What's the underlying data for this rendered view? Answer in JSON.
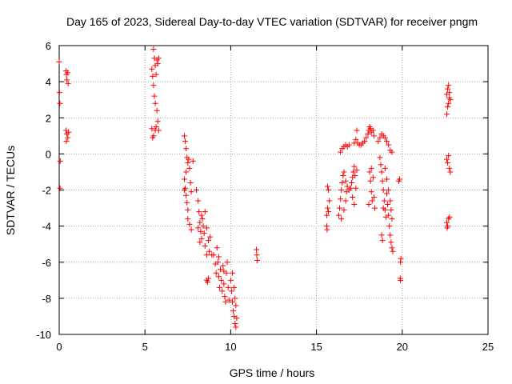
{
  "chart_data": {
    "type": "scatter",
    "title": "Day 165 of 2023, Sidereal Day-to-day VTEC variation (SDTVAR) for receiver pngm",
    "xlabel": "GPS time / hours",
    "ylabel": "SDTVAR / TECUs",
    "xlim": [
      0,
      25
    ],
    "ylim": [
      -10,
      6
    ],
    "xticks": [
      0,
      5,
      10,
      15,
      20,
      25
    ],
    "yticks": [
      -10,
      -8,
      -6,
      -4,
      -2,
      0,
      2,
      4,
      6
    ],
    "grid": true,
    "marker": "plus",
    "color": "#ff0000",
    "series": [
      {
        "name": "SDTVAR",
        "points": [
          [
            0.0,
            5.1
          ],
          [
            0.02,
            3.4
          ],
          [
            0.04,
            2.8
          ],
          [
            0.06,
            -0.4
          ],
          [
            0.05,
            -1.9
          ],
          [
            0.4,
            4.6
          ],
          [
            0.42,
            4.4
          ],
          [
            0.45,
            4.1
          ],
          [
            0.5,
            4.5
          ],
          [
            0.52,
            3.9
          ],
          [
            0.4,
            1.3
          ],
          [
            0.45,
            1.1
          ],
          [
            0.5,
            0.9
          ],
          [
            0.42,
            0.7
          ],
          [
            0.55,
            1.2
          ],
          [
            5.4,
            4.7
          ],
          [
            5.45,
            4.3
          ],
          [
            5.5,
            3.8
          ],
          [
            5.55,
            3.2
          ],
          [
            5.6,
            2.8
          ],
          [
            5.5,
            5.8
          ],
          [
            5.55,
            5.3
          ],
          [
            5.6,
            4.9
          ],
          [
            5.65,
            4.4
          ],
          [
            5.7,
            5.2
          ],
          [
            5.75,
            1.8
          ],
          [
            5.7,
            2.4
          ],
          [
            5.65,
            1.5
          ],
          [
            5.6,
            1.3
          ],
          [
            5.5,
            1.0
          ],
          [
            5.4,
            1.4
          ],
          [
            5.45,
            0.9
          ],
          [
            5.8,
            1.3
          ],
          [
            5.75,
            5.0
          ],
          [
            5.8,
            5.3
          ],
          [
            7.3,
            1.0
          ],
          [
            7.35,
            0.7
          ],
          [
            7.4,
            0.3
          ],
          [
            7.45,
            -0.2
          ],
          [
            7.5,
            -0.5
          ],
          [
            7.3,
            -1.4
          ],
          [
            7.35,
            -1.9
          ],
          [
            7.4,
            -2.3
          ],
          [
            7.45,
            -2.7
          ],
          [
            7.5,
            -3.1
          ],
          [
            7.55,
            -0.3
          ],
          [
            7.6,
            -0.8
          ],
          [
            7.65,
            -1.6
          ],
          [
            7.7,
            -2.1
          ],
          [
            7.8,
            -0.4
          ],
          [
            7.5,
            -3.6
          ],
          [
            7.6,
            -3.9
          ],
          [
            7.7,
            -4.2
          ],
          [
            7.4,
            -1.0
          ],
          [
            7.3,
            -2.0
          ],
          [
            8.0,
            -2.0
          ],
          [
            8.1,
            -2.6
          ],
          [
            8.15,
            -3.2
          ],
          [
            8.2,
            -3.8
          ],
          [
            8.25,
            -4.3
          ],
          [
            8.3,
            -4.7
          ],
          [
            8.35,
            -3.6
          ],
          [
            8.4,
            -4.0
          ],
          [
            8.45,
            -4.4
          ],
          [
            8.5,
            -3.2
          ],
          [
            8.6,
            -4.1
          ],
          [
            8.7,
            -4.8
          ],
          [
            8.75,
            -5.4
          ],
          [
            8.8,
            -4.6
          ],
          [
            8.9,
            -5.6
          ],
          [
            8.5,
            -5.1
          ],
          [
            8.6,
            -5.6
          ],
          [
            8.2,
            -4.9
          ],
          [
            8.3,
            -3.4
          ],
          [
            8.1,
            -4.1
          ],
          [
            8.6,
            -7.0
          ],
          [
            8.65,
            -7.1
          ],
          [
            8.7,
            -6.9
          ],
          [
            9.0,
            -5.6
          ],
          [
            9.1,
            -6.1
          ],
          [
            9.15,
            -6.6
          ],
          [
            9.2,
            -5.2
          ],
          [
            9.25,
            -6.0
          ],
          [
            9.3,
            -6.8
          ],
          [
            9.35,
            -7.4
          ],
          [
            9.4,
            -6.4
          ],
          [
            9.45,
            -7.0
          ],
          [
            9.5,
            -7.6
          ],
          [
            9.55,
            -6.2
          ],
          [
            9.6,
            -7.2
          ],
          [
            9.65,
            -7.9
          ],
          [
            9.7,
            -8.2
          ],
          [
            9.75,
            -6.6
          ],
          [
            9.8,
            -6.0
          ],
          [
            9.85,
            -7.4
          ],
          [
            9.9,
            -8.1
          ],
          [
            9.3,
            -5.7
          ],
          [
            9.6,
            -6.5
          ],
          [
            10.0,
            -7.0
          ],
          [
            10.05,
            -7.6
          ],
          [
            10.1,
            -8.2
          ],
          [
            10.15,
            -8.7
          ],
          [
            10.2,
            -9.0
          ],
          [
            10.25,
            -9.4
          ],
          [
            10.3,
            -8.4
          ],
          [
            10.35,
            -9.1
          ],
          [
            10.2,
            -7.4
          ],
          [
            10.1,
            -6.6
          ],
          [
            10.3,
            -9.6
          ],
          [
            10.25,
            -8.0
          ],
          [
            11.5,
            -5.3
          ],
          [
            11.52,
            -5.6
          ],
          [
            11.55,
            -5.9
          ],
          [
            15.6,
            -4.0
          ],
          [
            15.62,
            -4.2
          ],
          [
            15.65,
            -3.0
          ],
          [
            15.7,
            -3.2
          ],
          [
            15.75,
            -2.6
          ],
          [
            15.7,
            -2.0
          ],
          [
            15.65,
            -1.8
          ],
          [
            15.6,
            -3.4
          ],
          [
            16.3,
            -3.4
          ],
          [
            16.35,
            -3.0
          ],
          [
            16.4,
            -2.5
          ],
          [
            16.45,
            -2.0
          ],
          [
            16.5,
            -1.6
          ],
          [
            16.55,
            -1.2
          ],
          [
            16.6,
            -1.0
          ],
          [
            16.7,
            -1.5
          ],
          [
            16.75,
            -2.1
          ],
          [
            16.8,
            -1.8
          ],
          [
            16.4,
            0.1
          ],
          [
            16.5,
            0.3
          ],
          [
            16.6,
            0.4
          ],
          [
            16.7,
            0.5
          ],
          [
            16.8,
            0.4
          ],
          [
            16.9,
            0.5
          ],
          [
            16.45,
            -3.6
          ],
          [
            16.6,
            -3.1
          ],
          [
            16.7,
            -2.6
          ],
          [
            16.9,
            -2.0
          ],
          [
            17.0,
            -1.9
          ],
          [
            17.05,
            -1.6
          ],
          [
            17.1,
            -1.3
          ],
          [
            17.15,
            -1.0
          ],
          [
            17.2,
            -0.7
          ],
          [
            17.1,
            -2.4
          ],
          [
            17.2,
            -2.8
          ],
          [
            17.3,
            -1.9
          ],
          [
            17.25,
            -1.2
          ],
          [
            17.35,
            -0.9
          ],
          [
            17.2,
            0.6
          ],
          [
            17.3,
            0.8
          ],
          [
            17.4,
            0.6
          ],
          [
            17.5,
            0.5
          ],
          [
            17.35,
            1.3
          ],
          [
            17.6,
            0.5
          ],
          [
            17.7,
            0.6
          ],
          [
            17.8,
            0.7
          ],
          [
            17.9,
            0.9
          ],
          [
            18.0,
            1.1
          ],
          [
            18.05,
            1.3
          ],
          [
            18.1,
            1.5
          ],
          [
            18.15,
            1.4
          ],
          [
            18.2,
            1.2
          ],
          [
            18.3,
            1.3
          ],
          [
            18.35,
            1.0
          ],
          [
            18.1,
            -1.0
          ],
          [
            18.15,
            -1.5
          ],
          [
            18.2,
            -2.1
          ],
          [
            18.25,
            -2.6
          ],
          [
            18.3,
            -1.3
          ],
          [
            18.35,
            -2.4
          ],
          [
            18.4,
            -3.0
          ],
          [
            18.05,
            -2.8
          ],
          [
            18.2,
            -0.8
          ],
          [
            18.6,
            0.7
          ],
          [
            18.7,
            0.9
          ],
          [
            18.8,
            1.1
          ],
          [
            18.9,
            1.0
          ],
          [
            19.0,
            0.9
          ],
          [
            19.1,
            0.7
          ],
          [
            19.2,
            0.5
          ],
          [
            19.3,
            0.2
          ],
          [
            19.4,
            0.1
          ],
          [
            18.7,
            -0.2
          ],
          [
            18.75,
            -0.6
          ],
          [
            18.8,
            -1.0
          ],
          [
            18.85,
            -1.5
          ],
          [
            18.9,
            -2.0
          ],
          [
            18.95,
            -2.6
          ],
          [
            19.0,
            -3.1
          ],
          [
            19.05,
            -3.5
          ],
          [
            19.1,
            -2.2
          ],
          [
            19.15,
            -2.8
          ],
          [
            19.2,
            -3.4
          ],
          [
            19.25,
            -4.0
          ],
          [
            19.3,
            -4.5
          ],
          [
            19.35,
            -4.9
          ],
          [
            19.4,
            -5.2
          ],
          [
            19.45,
            -5.4
          ],
          [
            18.8,
            -4.5
          ],
          [
            18.85,
            -4.8
          ],
          [
            19.0,
            -0.8
          ],
          [
            19.1,
            -1.4
          ],
          [
            19.2,
            -2.0
          ],
          [
            19.3,
            -2.6
          ],
          [
            19.35,
            -3.1
          ],
          [
            19.4,
            -3.6
          ],
          [
            18.9,
            -3.0
          ],
          [
            19.8,
            -1.5
          ],
          [
            19.85,
            -1.4
          ],
          [
            19.9,
            -6.0
          ],
          [
            19.92,
            -5.8
          ],
          [
            19.88,
            -6.9
          ],
          [
            19.9,
            -7.0
          ],
          [
            22.6,
            3.3
          ],
          [
            22.65,
            3.6
          ],
          [
            22.7,
            3.8
          ],
          [
            22.75,
            3.4
          ],
          [
            22.8,
            3.0
          ],
          [
            22.65,
            2.6
          ],
          [
            22.6,
            2.2
          ],
          [
            22.7,
            2.8
          ],
          [
            22.75,
            3.1
          ],
          [
            22.6,
            -0.3
          ],
          [
            22.65,
            -0.5
          ],
          [
            22.7,
            -0.1
          ],
          [
            22.75,
            -0.8
          ],
          [
            22.8,
            -1.0
          ],
          [
            22.6,
            -3.8
          ],
          [
            22.65,
            -4.0
          ],
          [
            22.7,
            -3.6
          ],
          [
            22.75,
            -3.5
          ],
          [
            22.62,
            -4.1
          ]
        ]
      }
    ]
  }
}
